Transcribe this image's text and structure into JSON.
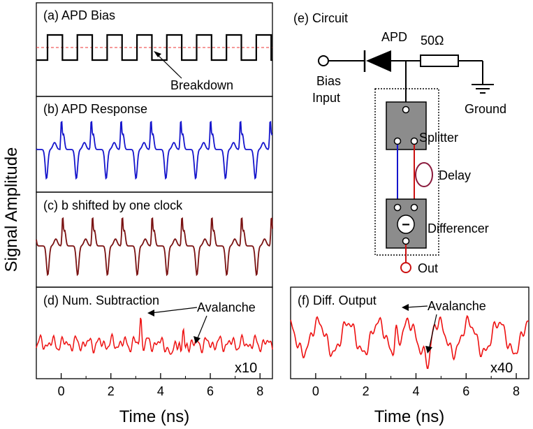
{
  "colors": {
    "bias": "#000000",
    "breakdown": "#ee3333",
    "response": "#1515cc",
    "shifted": "#7a1212",
    "subtraction": "#ee1111",
    "diff_output": "#ee1111",
    "box_fill": "#8c8c8c",
    "delay_loop": "#8a1a3c",
    "wire_blue": "#1515cc",
    "wire_red": "#cc1111"
  },
  "shared": {
    "ylabel": "Signal Amplitude",
    "xlabel": "Time (ns)"
  },
  "chart_data": [
    {
      "id": "a",
      "type": "line",
      "title": "(a) APD Bias",
      "annotations": [
        {
          "text": "Breakdown"
        }
      ],
      "x_range": [
        -1,
        8.5
      ],
      "series": [
        {
          "name": "bias",
          "shape": "square-wave",
          "period_ns": 1.2,
          "high": 1,
          "low": 0
        }
      ],
      "threshold": {
        "name": "breakdown",
        "value": 0.55,
        "style": "dashed"
      }
    },
    {
      "id": "b",
      "type": "line",
      "title": "(b) APD Response",
      "x_range": [
        -1,
        8.5
      ],
      "series": [
        {
          "name": "response",
          "period_ns": 1.2
        }
      ]
    },
    {
      "id": "c",
      "type": "line",
      "title": "(c) b shifted by one clock",
      "x_range": [
        -1,
        8.5
      ],
      "series": [
        {
          "name": "shifted",
          "period_ns": 1.2
        }
      ]
    },
    {
      "id": "d",
      "type": "line",
      "title": "(d) Num. Subtraction",
      "annotations": [
        {
          "text": "Avalanche"
        },
        {
          "text": "x10"
        }
      ],
      "x_range": [
        -1,
        8.5
      ],
      "xlabel": "Time (ns)",
      "xticks": [
        "0",
        "2",
        "4",
        "6",
        "8"
      ],
      "series": [
        {
          "name": "difference",
          "spike_at_ns": 3.2,
          "dip_at_ns": 4.4
        }
      ]
    },
    {
      "id": "f",
      "type": "line",
      "title": "(f) Diff. Output",
      "annotations": [
        {
          "text": "Avalanche"
        },
        {
          "text": "x40"
        }
      ],
      "x_range": [
        -1,
        8.5
      ],
      "xlabel": "Time (ns)",
      "xticks": [
        "0",
        "2",
        "4",
        "6",
        "8"
      ],
      "series": [
        {
          "name": "diff_output",
          "period_ns": 1.2,
          "spike_at_ns": 3.2,
          "dip_at_ns": 4.5
        }
      ]
    }
  ],
  "circuit": {
    "title": "(e) Circuit",
    "apd_label": "APD",
    "resistor_label": "50Ω",
    "bias_label_1": "Bias",
    "bias_label_2": "Input",
    "ground_label": "Ground",
    "splitter_label": "Splitter",
    "delay_label": "Delay",
    "differencer_label": "Differencer",
    "minus_symbol": "−",
    "out_label": "Out"
  }
}
